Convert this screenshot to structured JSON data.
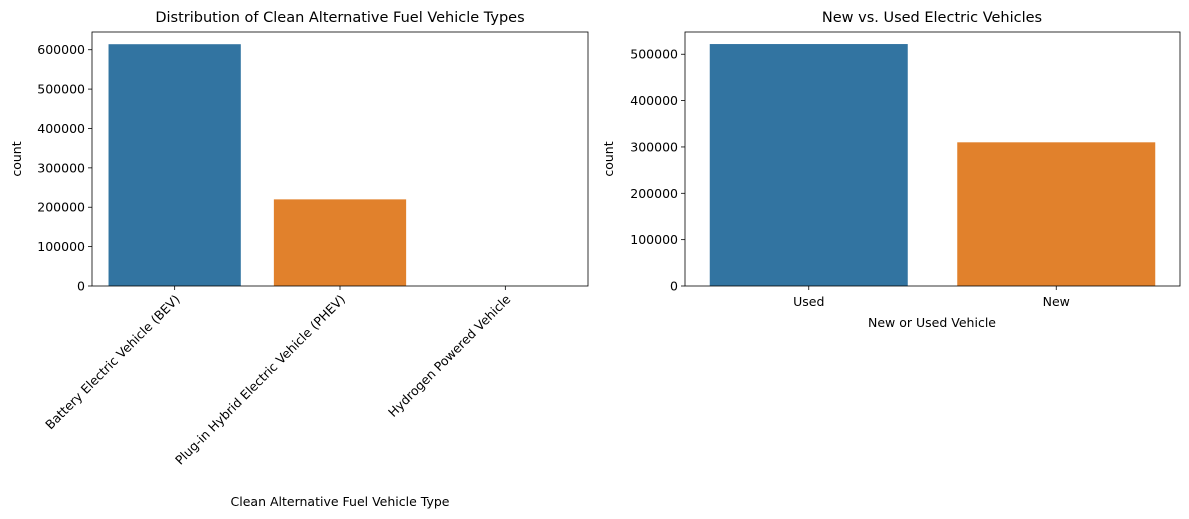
{
  "chart_data": [
    {
      "type": "bar",
      "title": "Distribution of Clean Alternative Fuel Vehicle Types",
      "xlabel": "Clean Alternative Fuel Vehicle Type",
      "ylabel": "count",
      "categories": [
        "Battery Electric Vehicle (BEV)",
        "Plug-in Hybrid Electric Vehicle (PHEV)",
        "Hydrogen Powered Vehicle"
      ],
      "values": [
        614000,
        220000,
        200
      ],
      "colors": [
        "#3274a1",
        "#e1812c",
        "#3a923a"
      ],
      "ylim": [
        0,
        645000
      ],
      "yticks": [
        0,
        100000,
        200000,
        300000,
        400000,
        500000,
        600000
      ],
      "grid": false,
      "xtick_rotation": 45
    },
    {
      "type": "bar",
      "title": "New vs. Used Electric Vehicles",
      "xlabel": "New or Used Vehicle",
      "ylabel": "count",
      "categories": [
        "Used",
        "New"
      ],
      "values": [
        522000,
        310000
      ],
      "colors": [
        "#3274a1",
        "#e1812c"
      ],
      "ylim": [
        0,
        548000
      ],
      "yticks": [
        0,
        100000,
        200000,
        300000,
        400000,
        500000
      ],
      "grid": false,
      "xtick_rotation": 0
    }
  ]
}
